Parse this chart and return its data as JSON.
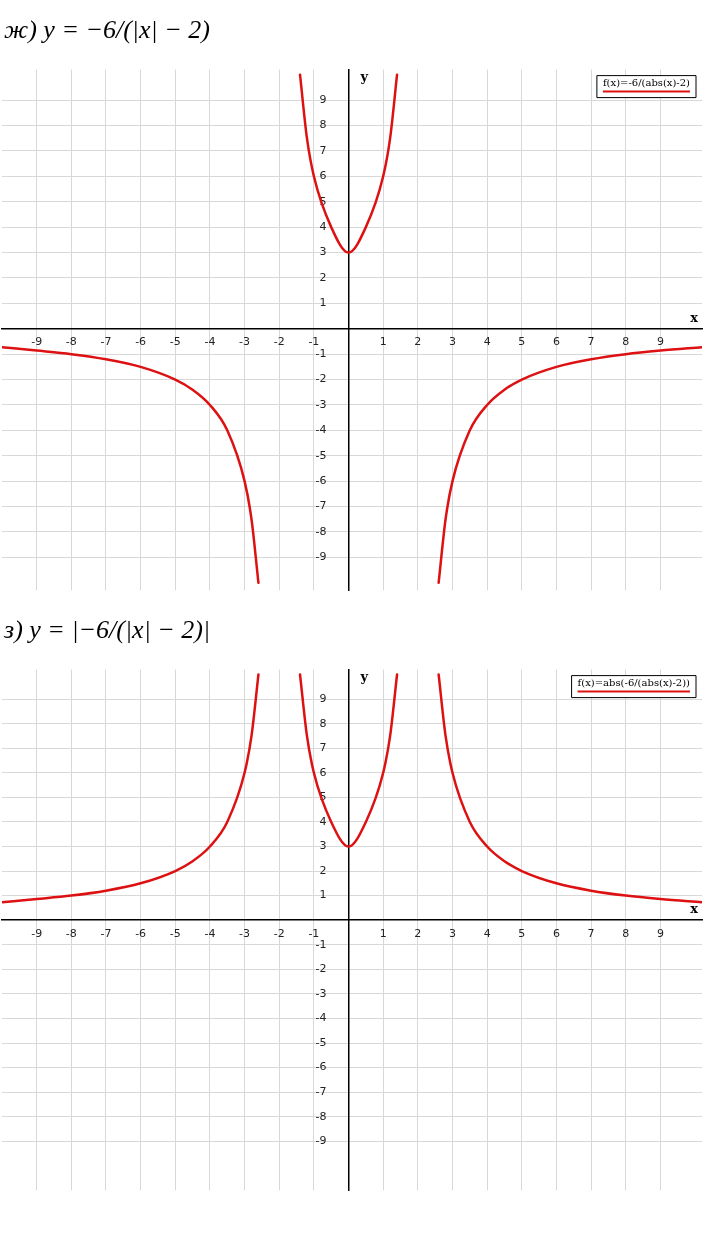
{
  "chart_data": [
    {
      "type": "line",
      "title": "ж) y = −6/(|x| − 2)",
      "xlabel": "x",
      "ylabel": "y",
      "xlim": [
        -10,
        10.2
      ],
      "ylim": [
        -10.3,
        10.2
      ],
      "xticks": [
        -9,
        -8,
        -7,
        -6,
        -5,
        -4,
        -3,
        -2,
        -1,
        1,
        2,
        3,
        4,
        5,
        6,
        7,
        8,
        9
      ],
      "yticks": [
        -9,
        -8,
        -7,
        -6,
        -5,
        -4,
        -3,
        -2,
        -1,
        1,
        2,
        3,
        4,
        5,
        6,
        7,
        8,
        9
      ],
      "grid": true,
      "legend": "top right",
      "marker": "none",
      "line_style": "solid",
      "series": [
        {
          "name": "f(x)=-6/(abs(x)-2)",
          "color": "#dd1111",
          "x": [
            -10,
            -9,
            -8,
            -7,
            -6,
            -5,
            -4.5,
            -4,
            -3.5,
            -3,
            -2.8,
            -2.6,
            -2,
            -1.4,
            -1.2,
            -1,
            -0.5,
            0,
            0.5,
            1,
            1.2,
            1.4,
            2,
            2.6,
            2.8,
            3,
            3.5,
            4,
            4.5,
            5,
            6,
            7,
            8,
            9,
            10.2
          ],
          "values": [
            -0.73,
            -0.86,
            -1,
            -1.2,
            -1.5,
            -2,
            -2.4,
            -3,
            -4,
            -6,
            -7.5,
            -10,
            null,
            10,
            7.5,
            6,
            4,
            3,
            4,
            6,
            7.5,
            10,
            null,
            -10,
            -7.5,
            -6,
            -4,
            -3,
            -2.4,
            -2,
            -1.5,
            -1.2,
            -1,
            -0.86,
            -0.73
          ]
        }
      ]
    },
    {
      "type": "line",
      "title": "з) y = |−6/(|x| − 2)|",
      "xlabel": "x",
      "ylabel": "y",
      "xlim": [
        -10,
        10.2
      ],
      "ylim": [
        -11,
        10.2
      ],
      "xticks": [
        -9,
        -8,
        -7,
        -6,
        -5,
        -4,
        -3,
        -2,
        -1,
        1,
        2,
        3,
        4,
        5,
        6,
        7,
        8,
        9
      ],
      "yticks": [
        -9,
        -8,
        -7,
        -6,
        -5,
        -4,
        -3,
        -2,
        -1,
        1,
        2,
        3,
        4,
        5,
        6,
        7,
        8,
        9
      ],
      "grid": true,
      "legend": "top right",
      "marker": "none",
      "line_style": "solid",
      "series": [
        {
          "name": "f(x)=abs(-6/(abs(x)-2))",
          "color": "#dd1111",
          "x": [
            -10,
            -9,
            -8,
            -7,
            -6,
            -5,
            -4.5,
            -4,
            -3.5,
            -3,
            -2.8,
            -2.6,
            -2,
            -1.4,
            -1.2,
            -1,
            -0.5,
            0,
            0.5,
            1,
            1.2,
            1.4,
            2,
            2.6,
            2.8,
            3,
            3.5,
            4,
            4.5,
            5,
            6,
            7,
            8,
            9,
            10.2
          ],
          "values": [
            0.73,
            0.86,
            1,
            1.2,
            1.5,
            2,
            2.4,
            3,
            4,
            6,
            7.5,
            10,
            null,
            10,
            7.5,
            6,
            4,
            3,
            4,
            6,
            7.5,
            10,
            null,
            10,
            7.5,
            6,
            4,
            3,
            2.4,
            2,
            1.5,
            1.2,
            1,
            0.86,
            0.73
          ]
        }
      ]
    }
  ]
}
